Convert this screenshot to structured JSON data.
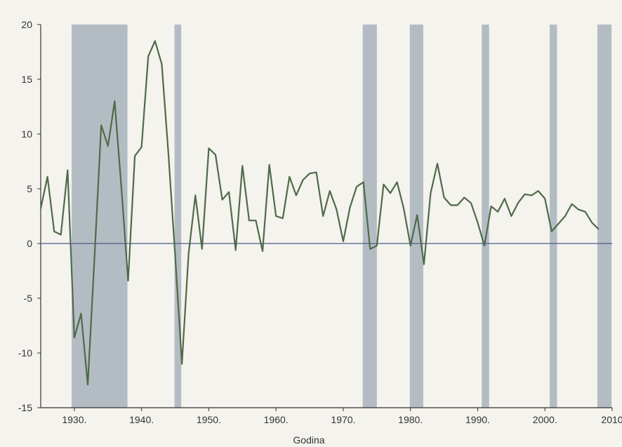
{
  "chart_data": {
    "type": "line",
    "xlabel": "Godina",
    "ylabel": "",
    "xlim": [
      1925,
      2010
    ],
    "ylim": [
      -15,
      20
    ],
    "x_ticks": [
      {
        "value": 1930,
        "label": "1930."
      },
      {
        "value": 1940,
        "label": "1940."
      },
      {
        "value": 1950,
        "label": "1950."
      },
      {
        "value": 1960,
        "label": "1960."
      },
      {
        "value": 1970,
        "label": "1970."
      },
      {
        "value": 1980,
        "label": "1980."
      },
      {
        "value": 1990,
        "label": "1990."
      },
      {
        "value": 2000,
        "label": "2000."
      },
      {
        "value": 2010,
        "label": "2010"
      }
    ],
    "y_ticks": [
      {
        "value": 20,
        "label": "20"
      },
      {
        "value": 15,
        "label": "15"
      },
      {
        "value": 10,
        "label": "10"
      },
      {
        "value": 5,
        "label": "5"
      },
      {
        "value": 0,
        "label": "0"
      },
      {
        "value": -5,
        "label": "-5"
      },
      {
        "value": -10,
        "label": "-10"
      },
      {
        "value": -15,
        "label": "-15"
      }
    ],
    "zero_line": 0,
    "recession_bands": [
      [
        1929.6,
        1937.9
      ],
      [
        1944.9,
        1945.9
      ],
      [
        1972.9,
        1975.0
      ],
      [
        1979.9,
        1981.9
      ],
      [
        1990.6,
        1991.7
      ],
      [
        2000.7,
        2001.8
      ],
      [
        2007.8,
        2009.9
      ]
    ],
    "series": [
      {
        "x": [
          1925,
          1926,
          1927,
          1928,
          1929,
          1930,
          1931,
          1932,
          1933,
          1934,
          1935,
          1936,
          1937,
          1938,
          1939,
          1940,
          1941,
          1942,
          1943,
          1944,
          1945,
          1946,
          1947,
          1948,
          1949,
          1950,
          1951,
          1952,
          1953,
          1954,
          1955,
          1956,
          1957,
          1958,
          1959,
          1960,
          1961,
          1962,
          1963,
          1964,
          1965,
          1966,
          1967,
          1968,
          1969,
          1970,
          1971,
          1972,
          1973,
          1974,
          1975,
          1976,
          1977,
          1978,
          1979,
          1980,
          1981,
          1982,
          1983,
          1984,
          1985,
          1986,
          1987,
          1988,
          1989,
          1990,
          1991,
          1992,
          1993,
          1994,
          1995,
          1996,
          1997,
          1998,
          1999,
          2000,
          2001,
          2002,
          2003,
          2004,
          2005,
          2006,
          2007,
          2008
        ],
        "values": [
          3.2,
          6.1,
          1.1,
          0.8,
          6.7,
          -8.6,
          -6.4,
          -12.9,
          -1.3,
          10.8,
          8.9,
          13.0,
          5.1,
          -3.4,
          8.0,
          8.8,
          17.1,
          18.5,
          16.4,
          8.1,
          -1.1,
          -11.0,
          -0.9,
          4.4,
          -0.5,
          8.7,
          8.1,
          4.0,
          4.7,
          -0.6,
          7.1,
          2.1,
          2.1,
          -0.7,
          7.2,
          2.5,
          2.3,
          6.1,
          4.4,
          5.8,
          6.4,
          6.5,
          2.5,
          4.8,
          3.1,
          0.2,
          3.3,
          5.2,
          5.6,
          -0.5,
          -0.2,
          5.4,
          4.6,
          5.6,
          3.2,
          -0.2,
          2.6,
          -1.9,
          4.6,
          7.3,
          4.2,
          3.5,
          3.5,
          4.2,
          3.7,
          1.9,
          -0.2,
          3.4,
          2.9,
          4.1,
          2.5,
          3.7,
          4.5,
          4.4,
          4.8,
          4.1,
          1.1,
          1.8,
          2.5,
          3.6,
          3.1,
          2.9,
          1.9,
          1.3
        ],
        "color": "#4f6a49"
      }
    ]
  }
}
